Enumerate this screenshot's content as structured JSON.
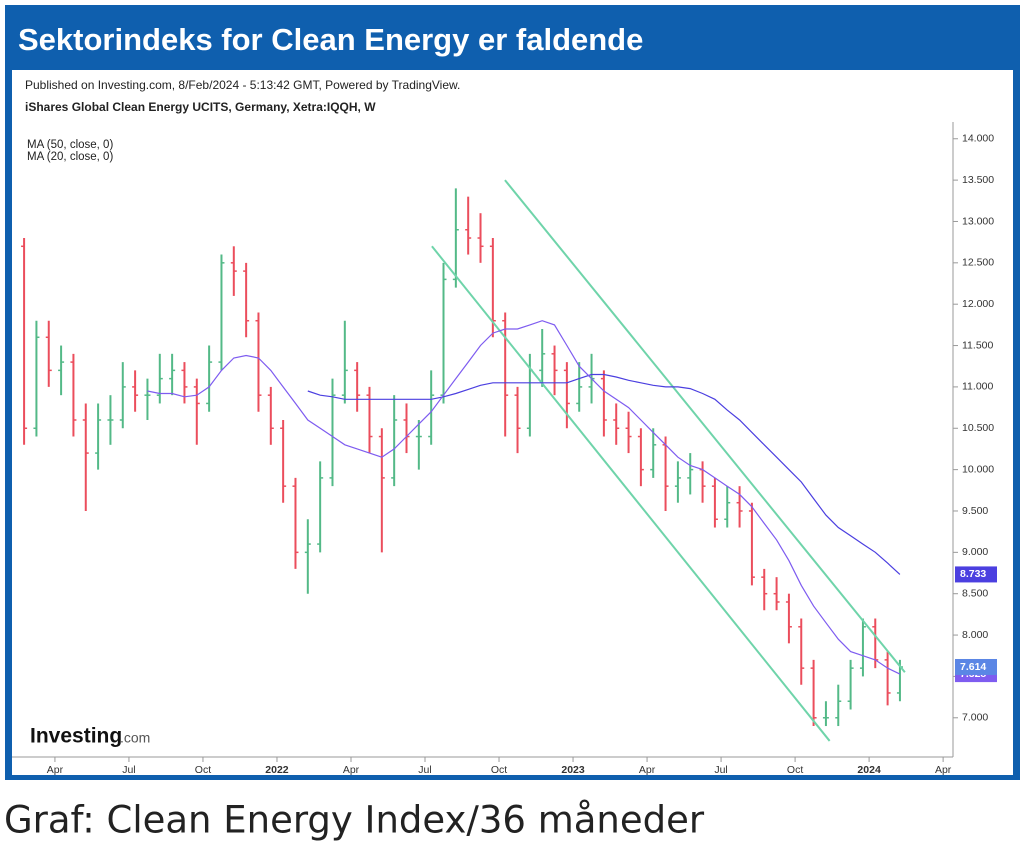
{
  "header": {
    "title": "Sektorindeks for Clean Energy er faldende"
  },
  "caption": "Graf: Clean Energy Index/36 måneder",
  "logo": {
    "name": "Investing",
    "suffix": ".com"
  },
  "chart_data": {
    "type": "ohlc",
    "published": "Published on Investing.com, 8/Feb/2024 - 5:13:42 GMT, Powered by TradingView.",
    "instrument": "iShares Global Clean Energy UCITS, Germany, Xetra:IQQH, W",
    "up_color": "#53b987",
    "down_color": "#eb4d5c",
    "xlim": [
      1.26,
      39.36
    ],
    "ylim": [
      6.55,
      14.13
    ],
    "xticks": [
      {
        "value": 3,
        "label": "Apr"
      },
      {
        "value": 6,
        "label": "Jul"
      },
      {
        "value": 9,
        "label": "Oct"
      },
      {
        "value": 12,
        "label": "2022"
      },
      {
        "value": 15,
        "label": "Apr"
      },
      {
        "value": 18,
        "label": "Jul"
      },
      {
        "value": 21,
        "label": "Oct"
      },
      {
        "value": 24,
        "label": "2023"
      },
      {
        "value": 27,
        "label": "Apr"
      },
      {
        "value": 30,
        "label": "Jul"
      },
      {
        "value": 33,
        "label": "Oct"
      },
      {
        "value": 36,
        "label": "2024"
      },
      {
        "value": 39,
        "label": "Apr"
      }
    ],
    "yticks": [
      {
        "value": 7,
        "label": "7.000"
      },
      {
        "value": 7.5,
        "label": "7.500"
      },
      {
        "value": 8,
        "label": "8.000"
      },
      {
        "value": 8.5,
        "label": "8.500"
      },
      {
        "value": 9,
        "label": "9.000"
      },
      {
        "value": 9.5,
        "label": "9.500"
      },
      {
        "value": 10,
        "label": "10.000"
      },
      {
        "value": 10.5,
        "label": "10.500"
      },
      {
        "value": 11,
        "label": "11.000"
      },
      {
        "value": 11.5,
        "label": "11.500"
      },
      {
        "value": 12,
        "label": "12.000"
      },
      {
        "value": 12.5,
        "label": "12.500"
      },
      {
        "value": 13,
        "label": "13.000"
      },
      {
        "value": 13.5,
        "label": "13.500"
      },
      {
        "value": 14,
        "label": "14.000"
      }
    ],
    "x": [
      1.75,
      2.25,
      2.75,
      3.25,
      3.75,
      4.25,
      4.75,
      5.25,
      5.75,
      6.25,
      6.75,
      7.25,
      7.75,
      8.25,
      8.75,
      9.25,
      9.75,
      10.25,
      10.75,
      11.25,
      11.75,
      12.25,
      12.75,
      13.25,
      13.75,
      14.25,
      14.75,
      15.25,
      15.75,
      16.25,
      16.75,
      17.25,
      17.75,
      18.25,
      18.75,
      19.25,
      19.75,
      20.25,
      20.75,
      21.25,
      21.75,
      22.25,
      22.75,
      23.25,
      23.75,
      24.25,
      24.75,
      25.25,
      25.75,
      26.25,
      26.75,
      27.25,
      27.75,
      28.25,
      28.75,
      29.25,
      29.75,
      30.25,
      30.75,
      31.25,
      31.75,
      32.25,
      32.75,
      33.25,
      33.75,
      34.25,
      34.75,
      35.25,
      35.75,
      36.25,
      36.75,
      37.25
    ],
    "open": [
      12.7,
      10.5,
      11.6,
      11.2,
      11.3,
      10.6,
      10.2,
      10.6,
      10.6,
      11.0,
      10.9,
      10.9,
      11.1,
      11.2,
      11.0,
      10.8,
      11.3,
      12.5,
      12.4,
      11.8,
      10.9,
      10.5,
      9.8,
      9.0,
      9.1,
      9.9,
      10.9,
      11.2,
      10.9,
      10.4,
      9.9,
      10.6,
      10.4,
      10.4,
      10.9,
      12.3,
      12.9,
      12.8,
      12.7,
      11.8,
      10.9,
      10.5,
      11.2,
      11.4,
      11.2,
      10.8,
      11.0,
      11.1,
      10.6,
      10.5,
      10.4,
      10.0,
      10.3,
      9.8,
      9.9,
      10.0,
      9.8,
      9.4,
      9.6,
      9.5,
      8.7,
      8.5,
      8.4,
      8.1,
      7.6,
      7.0,
      7.0,
      7.2,
      7.6,
      8.1,
      7.7,
      7.3
    ],
    "high": [
      12.8,
      11.8,
      11.8,
      11.5,
      11.4,
      10.8,
      10.8,
      10.9,
      11.3,
      11.2,
      11.1,
      11.4,
      11.4,
      11.3,
      11.1,
      11.5,
      12.6,
      12.7,
      12.5,
      11.9,
      11.0,
      10.6,
      9.9,
      9.4,
      10.1,
      11.1,
      11.8,
      11.3,
      11.0,
      10.5,
      10.9,
      10.8,
      10.6,
      11.2,
      12.5,
      13.4,
      13.3,
      13.1,
      12.8,
      11.9,
      11.0,
      11.4,
      11.7,
      11.5,
      11.3,
      11.3,
      11.4,
      11.2,
      10.8,
      10.7,
      10.5,
      10.5,
      10.4,
      10.1,
      10.2,
      10.1,
      9.9,
      9.8,
      9.8,
      9.6,
      8.8,
      8.7,
      8.5,
      8.2,
      7.7,
      7.2,
      7.4,
      7.7,
      8.2,
      8.2,
      7.8,
      7.7
    ],
    "low": [
      10.3,
      10.4,
      11.0,
      10.9,
      10.4,
      9.5,
      10.0,
      10.3,
      10.5,
      10.7,
      10.6,
      10.8,
      10.9,
      10.8,
      10.3,
      10.7,
      11.2,
      12.1,
      11.6,
      10.7,
      10.3,
      9.6,
      8.8,
      8.5,
      9.0,
      9.8,
      10.8,
      10.7,
      10.2,
      9.0,
      9.8,
      10.2,
      10.0,
      10.3,
      10.8,
      12.2,
      12.6,
      12.5,
      11.6,
      10.4,
      10.2,
      10.4,
      11.0,
      10.9,
      10.5,
      10.7,
      10.8,
      10.4,
      10.3,
      10.2,
      9.8,
      9.9,
      9.5,
      9.6,
      9.7,
      9.6,
      9.3,
      9.3,
      9.3,
      8.6,
      8.3,
      8.3,
      7.9,
      7.4,
      6.9,
      6.9,
      6.9,
      7.1,
      7.5,
      7.6,
      7.15,
      7.2
    ],
    "close": [
      10.5,
      11.6,
      11.2,
      11.3,
      10.6,
      10.2,
      10.6,
      10.6,
      11.0,
      10.9,
      10.9,
      11.1,
      11.2,
      11.0,
      10.8,
      11.3,
      12.5,
      12.4,
      11.8,
      10.9,
      10.5,
      9.8,
      9.0,
      9.1,
      9.9,
      10.9,
      11.2,
      10.9,
      10.4,
      9.9,
      10.6,
      10.4,
      10.4,
      10.9,
      12.3,
      12.9,
      12.8,
      12.7,
      11.8,
      10.9,
      10.5,
      11.2,
      11.4,
      11.2,
      10.8,
      11.0,
      11.1,
      10.6,
      10.5,
      10.4,
      10.0,
      10.3,
      9.8,
      9.9,
      10.0,
      9.8,
      9.4,
      9.6,
      9.5,
      8.7,
      8.5,
      8.4,
      8.1,
      7.6,
      7.0,
      7.0,
      7.2,
      7.6,
      8.1,
      7.7,
      7.3,
      7.614
    ],
    "close_label_color": "#5b86e5",
    "lines": [
      {
        "name": "MA (50, close, 0)",
        "color": "#4b3fe0",
        "values": [
          null,
          null,
          null,
          null,
          null,
          null,
          null,
          null,
          null,
          null,
          null,
          null,
          null,
          null,
          null,
          null,
          null,
          null,
          null,
          null,
          null,
          null,
          null,
          10.95,
          10.9,
          10.88,
          10.85,
          10.85,
          10.85,
          10.85,
          10.85,
          10.85,
          10.85,
          10.85,
          10.88,
          10.92,
          10.97,
          11.02,
          11.05,
          11.05,
          11.05,
          11.05,
          11.05,
          11.05,
          11.05,
          11.1,
          11.15,
          11.15,
          11.12,
          11.08,
          11.05,
          11.02,
          11.0,
          11.0,
          10.98,
          10.92,
          10.85,
          10.72,
          10.6,
          10.45,
          10.3,
          10.15,
          10.0,
          9.85,
          9.65,
          9.45,
          9.3,
          9.2,
          9.1,
          9.0,
          8.87,
          8.733
        ]
      },
      {
        "name": "MA (20, close, 0)",
        "color": "#7e5cf0",
        "values": [
          null,
          null,
          null,
          null,
          null,
          null,
          null,
          null,
          null,
          null,
          10.95,
          10.92,
          10.92,
          10.88,
          10.9,
          11.0,
          11.2,
          11.35,
          11.38,
          11.35,
          11.2,
          11.0,
          10.8,
          10.6,
          10.5,
          10.4,
          10.3,
          10.25,
          10.2,
          10.15,
          10.25,
          10.4,
          10.55,
          10.7,
          10.9,
          11.1,
          11.3,
          11.5,
          11.65,
          11.7,
          11.7,
          11.75,
          11.8,
          11.75,
          11.5,
          11.25,
          11.1,
          10.95,
          10.85,
          10.75,
          10.6,
          10.45,
          10.3,
          10.15,
          10.05,
          10.0,
          9.9,
          9.8,
          9.7,
          9.55,
          9.35,
          9.15,
          8.9,
          8.6,
          8.35,
          8.15,
          7.95,
          7.8,
          7.75,
          7.7,
          7.6,
          7.528
        ]
      }
    ],
    "trendlines": [
      {
        "color": "#6fd4aa",
        "x": [
          21.24,
          37.45
        ],
        "y": [
          13.5,
          7.55
        ]
      },
      {
        "color": "#6fd4aa",
        "x": [
          18.28,
          34.4
        ],
        "y": [
          12.7,
          6.72
        ]
      }
    ]
  }
}
